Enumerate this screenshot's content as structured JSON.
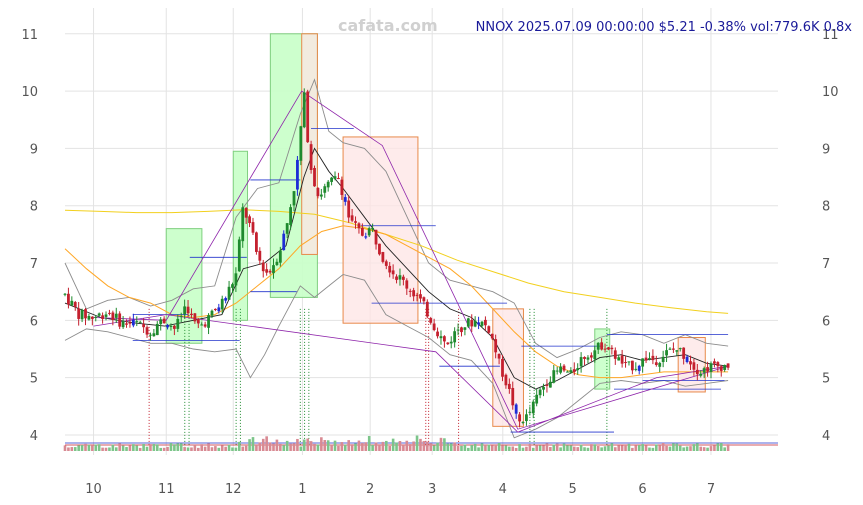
{
  "watermark": "cafata.com",
  "headline": "NNOX 2025.07.09 00:00:00 $5.21 -0.38% vol:779.6K 0.8x",
  "chart_data": {
    "type": "candlestick",
    "symbol": "NNOX",
    "ylim": [
      3.65,
      11.45
    ],
    "yticks": [
      4,
      5,
      6,
      7,
      8,
      9,
      10,
      11
    ],
    "xlim": [
      0,
      100
    ],
    "xticks": [
      {
        "label": "10",
        "x": 4
      },
      {
        "label": "11",
        "x": 14.2
      },
      {
        "label": "12",
        "x": 23.6
      },
      {
        "label": "1",
        "x": 33.3
      },
      {
        "label": "2",
        "x": 42.8
      },
      {
        "label": "3",
        "x": 51.5
      },
      {
        "label": "4",
        "x": 61.4
      },
      {
        "label": "5",
        "x": 71.2
      },
      {
        "label": "6",
        "x": 81
      },
      {
        "label": "7",
        "x": 90.6
      }
    ],
    "price_path": [
      [
        0,
        6.45
      ],
      [
        2,
        6.1
      ],
      [
        4,
        6.05
      ],
      [
        6,
        6.15
      ],
      [
        8,
        5.95
      ],
      [
        10,
        5.95
      ],
      [
        12,
        5.8
      ],
      [
        13,
        5.95
      ],
      [
        14,
        6.0
      ],
      [
        15.5,
        5.85
      ],
      [
        17,
        6.3
      ],
      [
        18,
        5.95
      ],
      [
        19,
        5.9
      ],
      [
        21,
        6.15
      ],
      [
        22.5,
        6.4
      ],
      [
        24,
        6.8
      ],
      [
        25,
        8.0
      ],
      [
        26,
        7.6
      ],
      [
        27,
        7.1
      ],
      [
        28.5,
        6.8
      ],
      [
        30,
        7.2
      ],
      [
        31,
        7.6
      ],
      [
        32.5,
        8.6
      ],
      [
        33.5,
        9.9
      ],
      [
        34.5,
        8.7
      ],
      [
        35.5,
        8.2
      ],
      [
        37,
        8.35
      ],
      [
        38.5,
        8.5
      ],
      [
        40,
        7.7
      ],
      [
        41.5,
        7.5
      ],
      [
        43,
        7.6
      ],
      [
        44.5,
        7.15
      ],
      [
        46,
        6.85
      ],
      [
        48,
        6.6
      ],
      [
        49.5,
        6.4
      ],
      [
        51,
        6.1
      ],
      [
        52,
        5.85
      ],
      [
        53.5,
        5.55
      ],
      [
        55,
        5.85
      ],
      [
        56.5,
        5.95
      ],
      [
        58,
        6.0
      ],
      [
        59.5,
        5.85
      ],
      [
        61,
        5.2
      ],
      [
        62.5,
        4.7
      ],
      [
        63.5,
        4.2
      ],
      [
        65,
        4.35
      ],
      [
        66.5,
        4.75
      ],
      [
        68,
        5.0
      ],
      [
        69.5,
        5.15
      ],
      [
        71,
        5.05
      ],
      [
        72.5,
        5.35
      ],
      [
        74,
        5.45
      ],
      [
        75.5,
        5.6
      ],
      [
        77,
        5.4
      ],
      [
        78.5,
        5.2
      ],
      [
        80,
        5.2
      ],
      [
        81.5,
        5.35
      ],
      [
        83,
        5.3
      ],
      [
        84.5,
        5.45
      ],
      [
        86,
        5.5
      ],
      [
        87.5,
        5.3
      ],
      [
        89,
        5.1
      ],
      [
        90.5,
        5.2
      ],
      [
        92,
        5.2
      ],
      [
        93,
        5.21
      ]
    ],
    "ma_short": [
      [
        0,
        6.3
      ],
      [
        5,
        6.05
      ],
      [
        10,
        5.95
      ],
      [
        14,
        5.9
      ],
      [
        18,
        6.0
      ],
      [
        22,
        6.1
      ],
      [
        25,
        6.9
      ],
      [
        28,
        7.0
      ],
      [
        31,
        7.3
      ],
      [
        33.5,
        8.5
      ],
      [
        35,
        9.0
      ],
      [
        37,
        8.6
      ],
      [
        39,
        8.3
      ],
      [
        42,
        7.8
      ],
      [
        45,
        7.3
      ],
      [
        48,
        6.9
      ],
      [
        51,
        6.5
      ],
      [
        54,
        6.2
      ],
      [
        57,
        6.05
      ],
      [
        60,
        5.7
      ],
      [
        63,
        5.0
      ],
      [
        66,
        4.8
      ],
      [
        69,
        4.95
      ],
      [
        72,
        5.15
      ],
      [
        75,
        5.35
      ],
      [
        78,
        5.4
      ],
      [
        81,
        5.3
      ],
      [
        84,
        5.35
      ],
      [
        87,
        5.4
      ],
      [
        90,
        5.25
      ],
      [
        93,
        5.2
      ]
    ],
    "ma_mid": [
      [
        0,
        7.25
      ],
      [
        3,
        6.9
      ],
      [
        6,
        6.6
      ],
      [
        9,
        6.4
      ],
      [
        12,
        6.3
      ],
      [
        15,
        6.1
      ],
      [
        18,
        6.05
      ],
      [
        21,
        6.1
      ],
      [
        24,
        6.3
      ],
      [
        27,
        6.6
      ],
      [
        30,
        6.9
      ],
      [
        33,
        7.3
      ],
      [
        36,
        7.55
      ],
      [
        39,
        7.65
      ],
      [
        42,
        7.6
      ],
      [
        45,
        7.5
      ],
      [
        48,
        7.3
      ],
      [
        51,
        7.1
      ],
      [
        54,
        6.9
      ],
      [
        57,
        6.6
      ],
      [
        60,
        6.2
      ],
      [
        63,
        5.8
      ],
      [
        66,
        5.45
      ],
      [
        69,
        5.2
      ],
      [
        72,
        5.05
      ],
      [
        75,
        5.0
      ],
      [
        78,
        5.0
      ],
      [
        81,
        5.05
      ],
      [
        84,
        5.1
      ],
      [
        87,
        5.1
      ],
      [
        90,
        5.1
      ],
      [
        93,
        5.1
      ]
    ],
    "ma_long": [
      [
        0,
        7.92
      ],
      [
        5,
        7.9
      ],
      [
        10,
        7.88
      ],
      [
        15,
        7.88
      ],
      [
        20,
        7.9
      ],
      [
        25,
        7.93
      ],
      [
        30,
        7.9
      ],
      [
        35,
        7.85
      ],
      [
        40,
        7.7
      ],
      [
        45,
        7.5
      ],
      [
        50,
        7.3
      ],
      [
        55,
        7.05
      ],
      [
        60,
        6.85
      ],
      [
        65,
        6.65
      ],
      [
        70,
        6.5
      ],
      [
        75,
        6.4
      ],
      [
        80,
        6.3
      ],
      [
        85,
        6.22
      ],
      [
        90,
        6.15
      ],
      [
        93,
        6.12
      ]
    ],
    "band_upper": [
      [
        0,
        7.0
      ],
      [
        3,
        6.2
      ],
      [
        6,
        6.35
      ],
      [
        9,
        6.4
      ],
      [
        12,
        6.25
      ],
      [
        15,
        6.35
      ],
      [
        18,
        6.55
      ],
      [
        21,
        6.6
      ],
      [
        24,
        7.8
      ],
      [
        27,
        8.3
      ],
      [
        30,
        8.4
      ],
      [
        33,
        9.6
      ],
      [
        35,
        10.2
      ],
      [
        37,
        9.3
      ],
      [
        39,
        9.1
      ],
      [
        42,
        9.0
      ],
      [
        45,
        8.6
      ],
      [
        48,
        7.8
      ],
      [
        51,
        7.0
      ],
      [
        54,
        6.7
      ],
      [
        57,
        6.6
      ],
      [
        60,
        6.5
      ],
      [
        63,
        6.3
      ],
      [
        66,
        5.6
      ],
      [
        69,
        5.35
      ],
      [
        72,
        5.5
      ],
      [
        75,
        5.7
      ],
      [
        78,
        5.8
      ],
      [
        81,
        5.75
      ],
      [
        84,
        5.6
      ],
      [
        87,
        5.75
      ],
      [
        90,
        5.6
      ],
      [
        93,
        5.55
      ]
    ],
    "band_lower": [
      [
        0,
        5.65
      ],
      [
        3,
        5.85
      ],
      [
        6,
        5.8
      ],
      [
        9,
        5.7
      ],
      [
        12,
        5.6
      ],
      [
        15,
        5.6
      ],
      [
        18,
        5.5
      ],
      [
        21,
        5.45
      ],
      [
        24,
        5.5
      ],
      [
        26,
        5.0
      ],
      [
        28,
        5.4
      ],
      [
        30,
        5.9
      ],
      [
        33,
        6.6
      ],
      [
        35,
        6.4
      ],
      [
        37,
        6.6
      ],
      [
        39,
        6.8
      ],
      [
        42,
        6.7
      ],
      [
        45,
        6.1
      ],
      [
        48,
        5.9
      ],
      [
        51,
        5.7
      ],
      [
        54,
        5.4
      ],
      [
        57,
        5.3
      ],
      [
        60,
        4.9
      ],
      [
        63,
        3.95
      ],
      [
        66,
        4.1
      ],
      [
        69,
        4.3
      ],
      [
        72,
        4.6
      ],
      [
        75,
        4.9
      ],
      [
        78,
        4.95
      ],
      [
        81,
        4.9
      ],
      [
        84,
        4.95
      ],
      [
        87,
        4.85
      ],
      [
        90,
        4.9
      ],
      [
        93,
        4.95
      ]
    ],
    "zigzag": [
      [
        4,
        6.05
      ],
      [
        14.2,
        6.0
      ],
      [
        33.2,
        10.0
      ],
      [
        44.5,
        9.05
      ],
      [
        63.5,
        4.1
      ],
      [
        93,
        5.2
      ],
      [
        83,
        5.0
      ],
      [
        63.5,
        4.05
      ],
      [
        52,
        5.45
      ],
      [
        14.2,
        6.1
      ],
      [
        4,
        5.9
      ]
    ],
    "boxes": [
      {
        "x0": 14.2,
        "x1": 19.2,
        "y0": 5.6,
        "y1": 7.6,
        "kind": "up"
      },
      {
        "x0": 23.6,
        "x1": 25.6,
        "y0": 6.0,
        "y1": 8.95,
        "kind": "up"
      },
      {
        "x0": 28.8,
        "x1": 35.4,
        "y0": 6.4,
        "y1": 11.0,
        "kind": "up"
      },
      {
        "x0": 33.2,
        "x1": 35.4,
        "y0": 7.15,
        "y1": 11.0,
        "kind": "down"
      },
      {
        "x0": 39.0,
        "x1": 49.5,
        "y0": 5.95,
        "y1": 9.2,
        "kind": "down"
      },
      {
        "x0": 60.0,
        "x1": 64.3,
        "y0": 4.15,
        "y1": 6.2,
        "kind": "down"
      },
      {
        "x0": 74.3,
        "x1": 76.4,
        "y0": 4.8,
        "y1": 5.85,
        "kind": "up"
      },
      {
        "x0": 86.0,
        "x1": 89.8,
        "y0": 4.75,
        "y1": 5.7,
        "kind": "down"
      }
    ],
    "levels": [
      {
        "x0": 9.5,
        "x1": 17.3,
        "y": 6.1
      },
      {
        "x0": 9.5,
        "x1": 24.5,
        "y": 5.65
      },
      {
        "x0": 17.5,
        "x1": 25.5,
        "y": 7.1
      },
      {
        "x0": 26.0,
        "x1": 33.0,
        "y": 8.45
      },
      {
        "x0": 26.0,
        "x1": 32.5,
        "y": 6.5
      },
      {
        "x0": 34.5,
        "x1": 40.5,
        "y": 9.35
      },
      {
        "x0": 41.5,
        "x1": 52.0,
        "y": 7.65
      },
      {
        "x0": 43.0,
        "x1": 62.0,
        "y": 6.3
      },
      {
        "x0": 52.5,
        "x1": 61.0,
        "y": 5.2
      },
      {
        "x0": 64.0,
        "x1": 75.5,
        "y": 5.55
      },
      {
        "x0": 62.5,
        "x1": 77.0,
        "y": 4.05
      },
      {
        "x0": 76.0,
        "x1": 93.0,
        "y": 5.75
      },
      {
        "x0": 77.0,
        "x1": 92.0,
        "y": 4.8
      },
      {
        "x0": 81.0,
        "x1": 92.5,
        "y": 4.95
      }
    ],
    "markers": [
      {
        "x": 11.8,
        "color": "red"
      },
      {
        "x": 16.8,
        "color": "green"
      },
      {
        "x": 17.4,
        "color": "green"
      },
      {
        "x": 24.0,
        "color": "green"
      },
      {
        "x": 24.6,
        "color": "green"
      },
      {
        "x": 33.0,
        "color": "green"
      },
      {
        "x": 33.6,
        "color": "green"
      },
      {
        "x": 34.2,
        "color": "green"
      },
      {
        "x": 50.6,
        "color": "red"
      },
      {
        "x": 51.0,
        "color": "red"
      },
      {
        "x": 55.2,
        "color": "red"
      },
      {
        "x": 65.2,
        "color": "green"
      },
      {
        "x": 65.8,
        "color": "green"
      },
      {
        "x": 76.0,
        "color": "green"
      }
    ],
    "colors": {
      "up": "#1f8a2e",
      "down": "#c4202e",
      "highlight": "#1d2bd6",
      "ma_short": "#222222",
      "ma_mid": "#ffa726",
      "ma_long": "#f2d01e",
      "band": "#8c8c8c",
      "zigzag": "#8e24aa",
      "level": "#2233cc",
      "up_box_fill": "#c8ffc8",
      "down_box_fill": "#fde4e4",
      "down_box_stroke": "#e8894a"
    }
  }
}
